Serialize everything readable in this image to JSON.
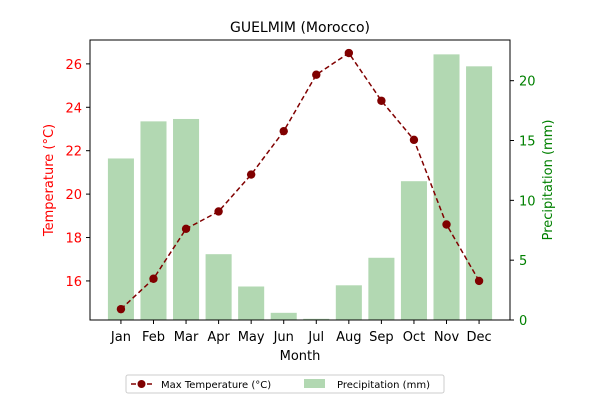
{
  "chart_data": {
    "type": "bar+line",
    "title": "GUELMIM (Morocco)",
    "xlabel": "Month",
    "categories": [
      "Jan",
      "Feb",
      "Mar",
      "Apr",
      "May",
      "Jun",
      "Jul",
      "Aug",
      "Sep",
      "Oct",
      "Nov",
      "Dec"
    ],
    "left_axis": {
      "label": "Temperature (°C)",
      "color": "#ff0000",
      "ylim": [
        14.2,
        27.1
      ],
      "ticks": [
        16,
        18,
        20,
        22,
        24,
        26
      ]
    },
    "right_axis": {
      "label": "Precipitation (mm)",
      "color": "#008000",
      "ylim": [
        0,
        23.4
      ],
      "ticks": [
        0,
        5,
        10,
        15,
        20
      ]
    },
    "series": [
      {
        "name": "Max Temperature (°C)",
        "kind": "line",
        "axis": "left",
        "color": "#800000",
        "style": "dashed",
        "marker": "circle",
        "values": [
          14.7,
          16.1,
          18.4,
          19.2,
          20.9,
          22.9,
          25.5,
          26.5,
          24.3,
          22.5,
          18.6,
          16.0
        ]
      },
      {
        "name": "Precipitation (mm)",
        "kind": "bar",
        "axis": "right",
        "color": "#b2d8b2",
        "values": [
          13.5,
          16.6,
          16.8,
          5.5,
          2.8,
          0.6,
          0.1,
          2.9,
          5.2,
          11.6,
          22.2,
          21.2
        ]
      }
    ],
    "legend_position": "bottom-center"
  }
}
